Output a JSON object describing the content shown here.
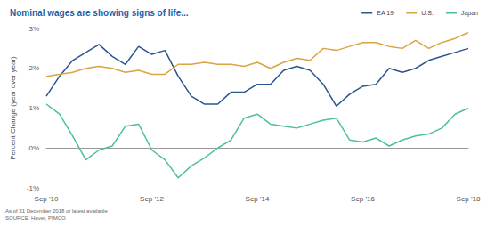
{
  "chart_data": {
    "type": "line",
    "title": "Nominal wages are showing signs of life...",
    "y_label": "Percent Change (year over year)",
    "annotations": [
      "As of 31 December 2018 or latest available",
      "SOURCE: Haver, PIMCO"
    ],
    "categories": [
      "Sep '10",
      null,
      null,
      null,
      null,
      null,
      null,
      null,
      "Sep '12",
      null,
      null,
      null,
      null,
      null,
      null,
      null,
      "Sep '14",
      null,
      null,
      null,
      null,
      null,
      null,
      null,
      "Sep '16",
      null,
      null,
      null,
      null,
      null,
      null,
      null,
      "Sep '18"
    ],
    "series": [
      {
        "name": "EA 19",
        "color": "#2b5591",
        "values": [
          1.3,
          1.8,
          2.2,
          2.4,
          2.6,
          2.3,
          2.1,
          2.55,
          2.35,
          2.45,
          1.8,
          1.3,
          1.1,
          1.1,
          1.4,
          1.4,
          1.6,
          1.6,
          1.95,
          2.05,
          1.95,
          1.6,
          1.05,
          1.35,
          1.55,
          1.6,
          2.0,
          1.9,
          2.0,
          2.2,
          2.3,
          2.4,
          2.5
        ]
      },
      {
        "name": "U.S.",
        "color": "#d9a441",
        "values": [
          1.8,
          1.85,
          1.9,
          2.0,
          2.05,
          2.0,
          1.9,
          1.95,
          1.85,
          1.85,
          2.1,
          2.1,
          2.15,
          2.1,
          2.1,
          2.05,
          2.15,
          2.0,
          2.15,
          2.25,
          2.2,
          2.5,
          2.45,
          2.55,
          2.65,
          2.65,
          2.55,
          2.5,
          2.7,
          2.5,
          2.65,
          2.75,
          2.9
        ]
      },
      {
        "name": "Japan",
        "color": "#4dbf9c",
        "values": [
          1.1,
          0.85,
          0.3,
          -0.3,
          -0.05,
          0.05,
          0.55,
          0.6,
          -0.05,
          -0.3,
          -0.75,
          -0.45,
          -0.25,
          0.0,
          0.2,
          0.75,
          0.85,
          0.6,
          0.55,
          0.5,
          0.6,
          0.7,
          0.75,
          0.2,
          0.15,
          0.25,
          0.05,
          0.2,
          0.3,
          0.35,
          0.5,
          0.85,
          1.0
        ]
      }
    ],
    "ylim": [
      -1,
      3
    ],
    "yticks": [
      {
        "value": -1,
        "label": "-1%"
      },
      {
        "value": 0,
        "label": "0%"
      },
      {
        "value": 1,
        "label": "1%"
      },
      {
        "value": 2,
        "label": "2%"
      },
      {
        "value": 3,
        "label": "3%"
      }
    ],
    "grid": false,
    "legend": "top-right"
  }
}
